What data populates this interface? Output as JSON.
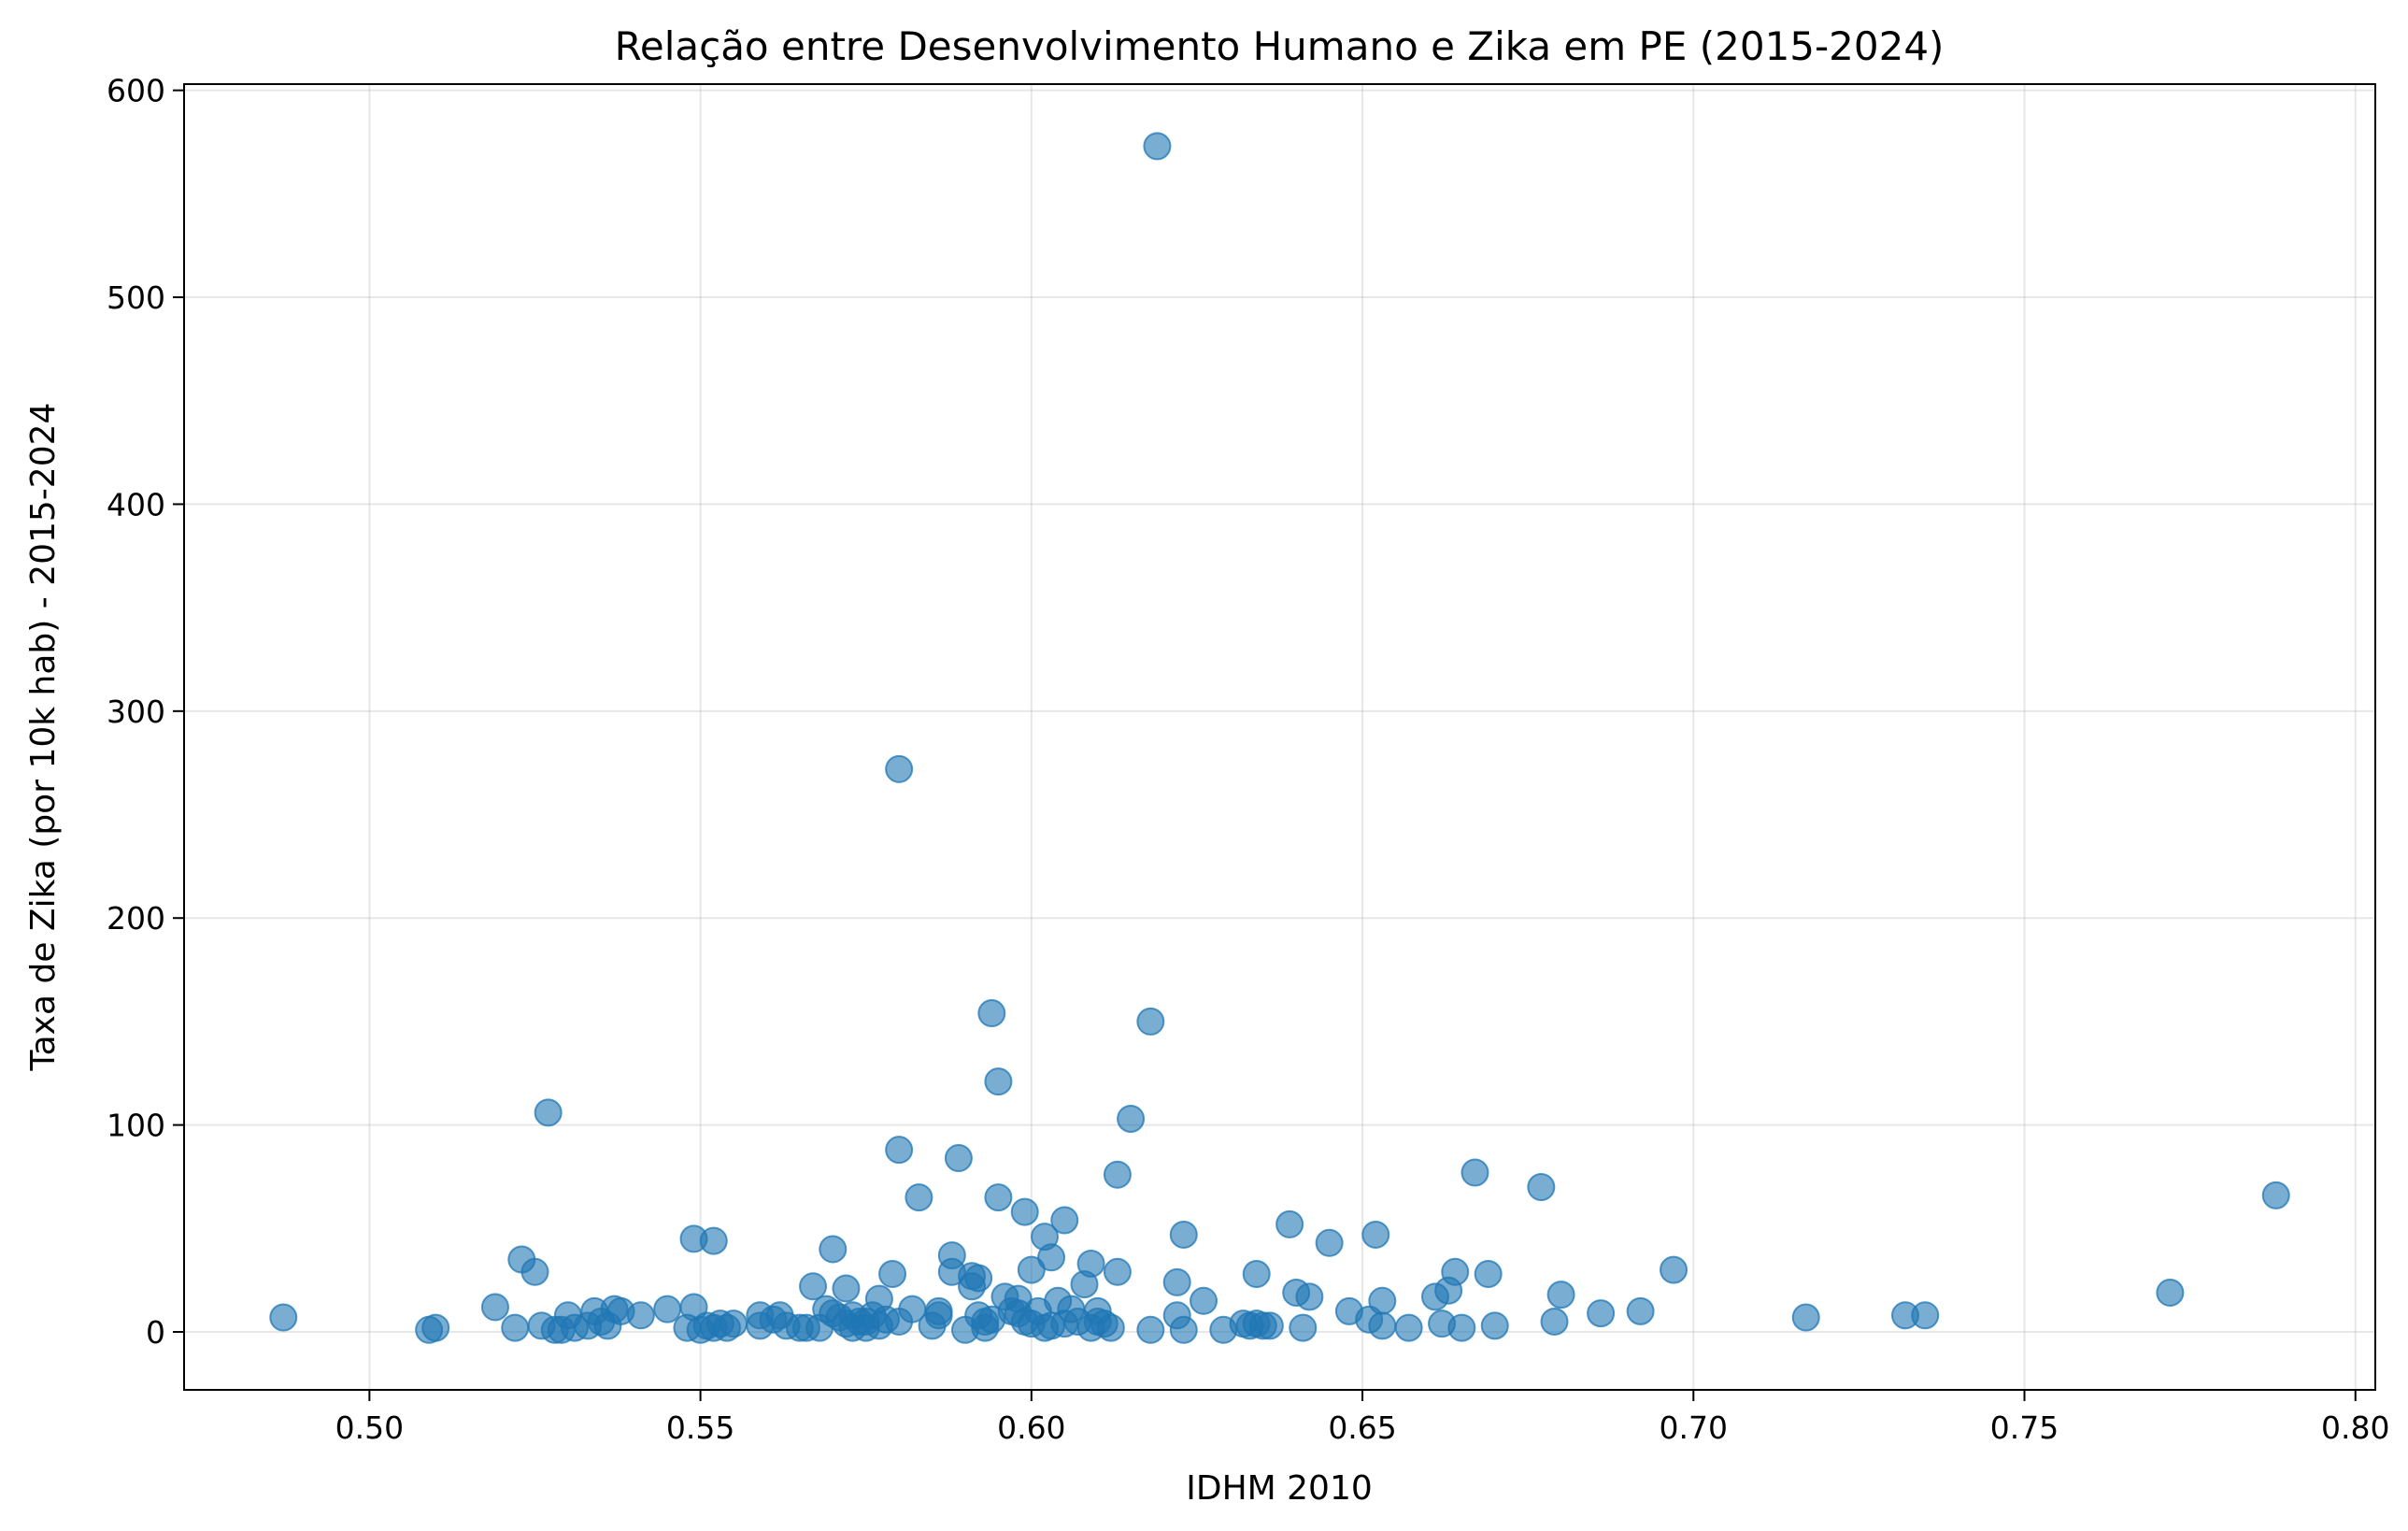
{
  "chart_data": {
    "type": "scatter",
    "title": "Relação entre Desenvolvimento Humano e Zika em PE (2015-2024)",
    "xlabel": "IDHM 2010",
    "ylabel": "Taxa de Zika (por 10k hab) - 2015-2024",
    "xlim": [
      0.472,
      0.803
    ],
    "ylim": [
      -28,
      603
    ],
    "x_ticks": [
      "0.50",
      "0.55",
      "0.60",
      "0.65",
      "0.70",
      "0.75",
      "0.80"
    ],
    "x_tick_values": [
      0.5,
      0.55,
      0.6,
      0.65,
      0.7,
      0.75,
      0.8
    ],
    "y_ticks": [
      "0",
      "100",
      "200",
      "300",
      "400",
      "500",
      "600"
    ],
    "y_tick_values": [
      0,
      100,
      200,
      300,
      400,
      500,
      600
    ],
    "grid": true,
    "marker_color": "#1f77b4",
    "marker_alpha": 0.6,
    "points": [
      [
        0.487,
        7
      ],
      [
        0.509,
        1
      ],
      [
        0.51,
        2
      ],
      [
        0.519,
        12
      ],
      [
        0.522,
        2
      ],
      [
        0.523,
        35
      ],
      [
        0.525,
        29
      ],
      [
        0.526,
        3
      ],
      [
        0.527,
        106
      ],
      [
        0.528,
        1
      ],
      [
        0.529,
        1
      ],
      [
        0.53,
        8
      ],
      [
        0.531,
        2
      ],
      [
        0.533,
        3
      ],
      [
        0.534,
        10
      ],
      [
        0.535,
        5
      ],
      [
        0.536,
        3
      ],
      [
        0.537,
        11
      ],
      [
        0.538,
        10
      ],
      [
        0.541,
        8
      ],
      [
        0.545,
        11
      ],
      [
        0.548,
        2
      ],
      [
        0.549,
        45
      ],
      [
        0.549,
        12
      ],
      [
        0.55,
        1
      ],
      [
        0.551,
        3
      ],
      [
        0.552,
        44
      ],
      [
        0.552,
        2
      ],
      [
        0.553,
        4
      ],
      [
        0.554,
        2
      ],
      [
        0.555,
        4
      ],
      [
        0.559,
        8
      ],
      [
        0.559,
        3
      ],
      [
        0.561,
        6
      ],
      [
        0.562,
        8
      ],
      [
        0.563,
        3
      ],
      [
        0.565,
        2
      ],
      [
        0.566,
        2
      ],
      [
        0.567,
        22
      ],
      [
        0.568,
        2
      ],
      [
        0.569,
        11
      ],
      [
        0.57,
        40
      ],
      [
        0.57,
        9
      ],
      [
        0.571,
        7
      ],
      [
        0.572,
        4
      ],
      [
        0.572,
        21
      ],
      [
        0.573,
        2
      ],
      [
        0.573,
        8
      ],
      [
        0.574,
        5
      ],
      [
        0.575,
        2
      ],
      [
        0.575,
        5
      ],
      [
        0.576,
        8
      ],
      [
        0.577,
        3
      ],
      [
        0.577,
        16
      ],
      [
        0.578,
        6
      ],
      [
        0.579,
        28
      ],
      [
        0.58,
        88
      ],
      [
        0.58,
        272
      ],
      [
        0.58,
        5
      ],
      [
        0.582,
        11
      ],
      [
        0.583,
        65
      ],
      [
        0.585,
        3
      ],
      [
        0.586,
        10
      ],
      [
        0.586,
        8
      ],
      [
        0.588,
        37
      ],
      [
        0.588,
        29
      ],
      [
        0.589,
        84
      ],
      [
        0.59,
        1
      ],
      [
        0.591,
        27
      ],
      [
        0.591,
        22
      ],
      [
        0.592,
        26
      ],
      [
        0.592,
        8
      ],
      [
        0.593,
        2
      ],
      [
        0.593,
        5
      ],
      [
        0.594,
        154
      ],
      [
        0.594,
        6
      ],
      [
        0.595,
        121
      ],
      [
        0.595,
        65
      ],
      [
        0.596,
        17
      ],
      [
        0.597,
        10
      ],
      [
        0.598,
        16
      ],
      [
        0.598,
        9
      ],
      [
        0.599,
        58
      ],
      [
        0.599,
        5
      ],
      [
        0.6,
        30
      ],
      [
        0.6,
        4
      ],
      [
        0.601,
        10
      ],
      [
        0.602,
        2
      ],
      [
        0.602,
        46
      ],
      [
        0.603,
        36
      ],
      [
        0.603,
        3
      ],
      [
        0.604,
        15
      ],
      [
        0.605,
        54
      ],
      [
        0.605,
        4
      ],
      [
        0.606,
        11
      ],
      [
        0.607,
        5
      ],
      [
        0.608,
        23
      ],
      [
        0.609,
        33
      ],
      [
        0.609,
        2
      ],
      [
        0.61,
        10
      ],
      [
        0.61,
        5
      ],
      [
        0.611,
        4
      ],
      [
        0.612,
        2
      ],
      [
        0.613,
        76
      ],
      [
        0.613,
        29
      ],
      [
        0.615,
        103
      ],
      [
        0.618,
        150
      ],
      [
        0.618,
        1
      ],
      [
        0.619,
        573
      ],
      [
        0.622,
        24
      ],
      [
        0.622,
        8
      ],
      [
        0.623,
        47
      ],
      [
        0.623,
        1
      ],
      [
        0.626,
        15
      ],
      [
        0.629,
        1
      ],
      [
        0.632,
        4
      ],
      [
        0.633,
        3
      ],
      [
        0.634,
        28
      ],
      [
        0.634,
        4
      ],
      [
        0.635,
        3
      ],
      [
        0.636,
        3
      ],
      [
        0.639,
        52
      ],
      [
        0.64,
        19
      ],
      [
        0.641,
        2
      ],
      [
        0.642,
        17
      ],
      [
        0.645,
        43
      ],
      [
        0.648,
        10
      ],
      [
        0.651,
        6
      ],
      [
        0.652,
        47
      ],
      [
        0.653,
        15
      ],
      [
        0.653,
        3
      ],
      [
        0.657,
        2
      ],
      [
        0.661,
        17
      ],
      [
        0.662,
        4
      ],
      [
        0.663,
        20
      ],
      [
        0.664,
        29
      ],
      [
        0.665,
        2
      ],
      [
        0.667,
        77
      ],
      [
        0.669,
        28
      ],
      [
        0.67,
        3
      ],
      [
        0.677,
        70
      ],
      [
        0.679,
        5
      ],
      [
        0.68,
        18
      ],
      [
        0.686,
        9
      ],
      [
        0.692,
        10
      ],
      [
        0.697,
        30
      ],
      [
        0.717,
        7
      ],
      [
        0.732,
        8
      ],
      [
        0.735,
        8
      ],
      [
        0.772,
        19
      ],
      [
        0.788,
        66
      ]
    ]
  }
}
